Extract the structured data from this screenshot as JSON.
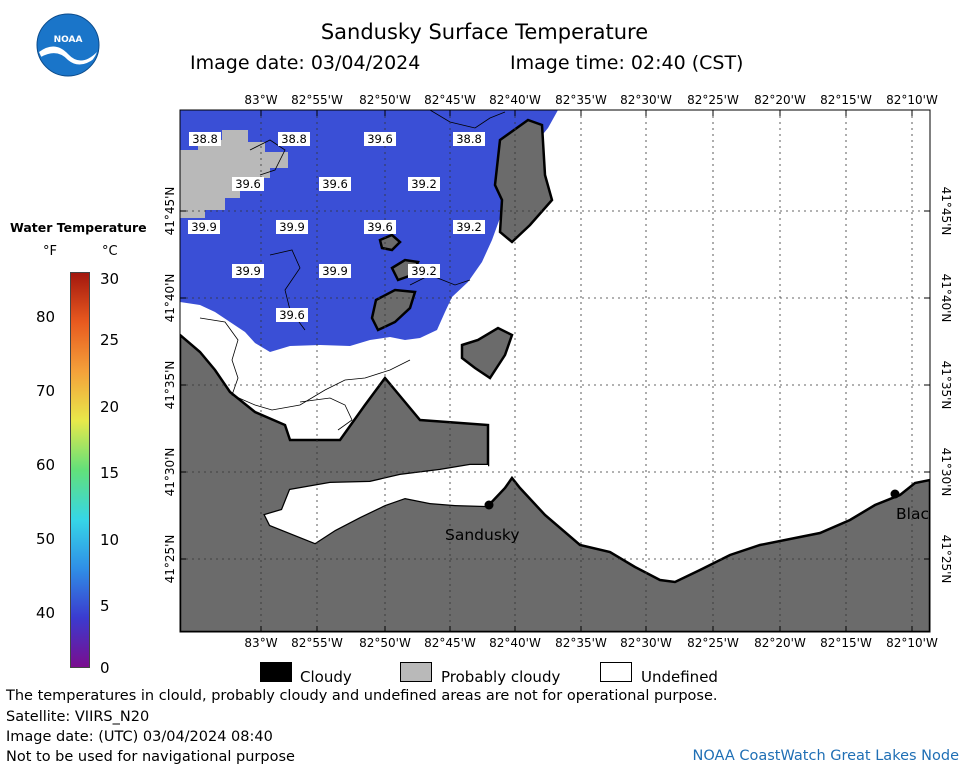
{
  "header": {
    "title": "Sandusky Surface Temperature",
    "image_date": "Image date: 03/04/2024",
    "image_time": "Image time: 02:40 (CST)",
    "logo_text": "NOAA"
  },
  "colorbar": {
    "title": "Water Temperature",
    "unit_f": "°F",
    "unit_c": "°C",
    "f_ticks": [
      "80",
      "70",
      "60",
      "50",
      "40"
    ],
    "c_ticks": [
      "30",
      "25",
      "20",
      "15",
      "10",
      "5",
      "0"
    ],
    "colors": [
      "#7a0d8f",
      "#3b3bcf",
      "#2f8fe6",
      "#36d6e6",
      "#62e07a",
      "#e8e84a",
      "#f4a13a",
      "#e85a1f",
      "#a3170e"
    ]
  },
  "map": {
    "lon_labels": [
      "83°W",
      "82°55'W",
      "82°50'W",
      "82°45'W",
      "82°40'W",
      "82°35'W",
      "82°30'W",
      "82°25'W",
      "82°20'W",
      "82°15'W",
      "82°10'W"
    ],
    "lat_labels": [
      "41°45'N",
      "41°40'N",
      "41°35'N",
      "41°30'N",
      "41°25'N"
    ],
    "city_sandusky": "Sandusky",
    "city_right": "Blac",
    "temp_labels": [
      "38.8",
      "38.8",
      "39.6",
      "38.8",
      "39.6",
      "39.6",
      "39.2",
      "39.9",
      "39.9",
      "39.6",
      "39.2",
      "39.9",
      "39.9",
      "39.2",
      "39.6"
    ],
    "water_color": "#3a4fd6",
    "land_color": "#6b6b6b",
    "cloud_color": "#b9b9b9"
  },
  "key": {
    "cloudy": "Cloudy",
    "probably_cloudy": "Probably cloudy",
    "undefined": "Undefined"
  },
  "footer": {
    "disclaimer": "The temperatures in clould, probably cloudy and undefined areas are not for operational purpose.",
    "satellite": "Satellite: VIIRS_N20",
    "utc_date": "Image date: (UTC) 03/04/2024  08:40",
    "nav_warning": "Not to be used for navigational purpose",
    "credit": "NOAA CoastWatch Great Lakes Node"
  }
}
